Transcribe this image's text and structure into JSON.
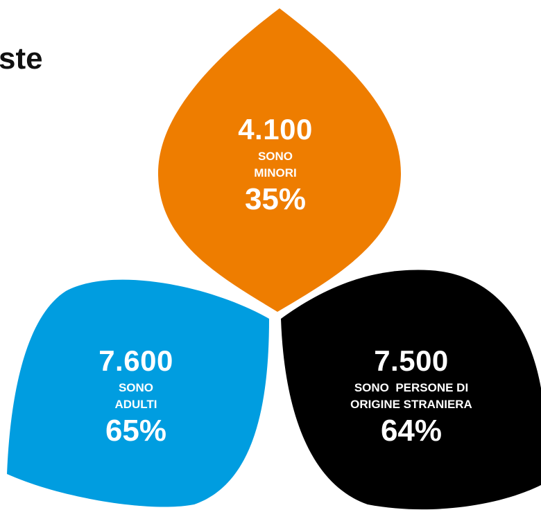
{
  "title_fragment": "ste",
  "colors": {
    "minors": "#ee7d00",
    "adults": "#009de0",
    "foreign": "#000000",
    "text": "#ffffff"
  },
  "petals": {
    "top": {
      "count": "4.100",
      "caption_line1": "SONO",
      "caption_line2": "MINORI",
      "percent": "35%"
    },
    "left": {
      "count": "7.600",
      "caption_line1": "SONO",
      "caption_line2": "ADULTI",
      "percent": "65%"
    },
    "right": {
      "count": "7.500",
      "caption_line1": "SONO  PERSONE DI",
      "caption_line2": "ORIGINE STRANIERA",
      "percent": "64%"
    }
  }
}
